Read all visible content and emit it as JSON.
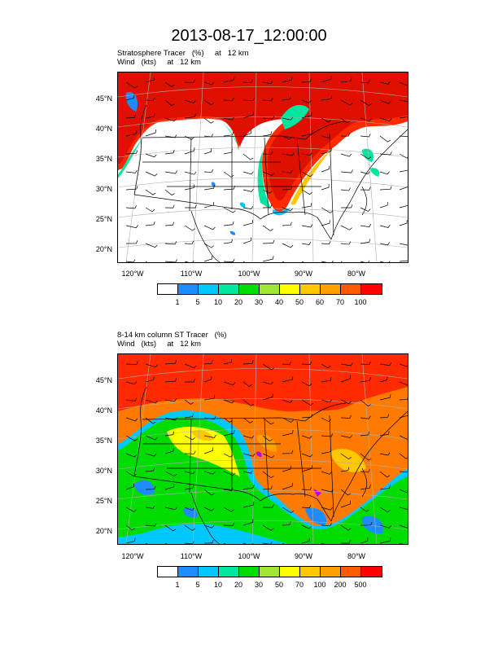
{
  "title": "2013-08-17_12:00:00",
  "panels": [
    {
      "line1": "Stratosphere Tracer   (%)     at   12 km",
      "line2": "Wind   (kts)     at   12 km",
      "lat_labels": [
        "45°N",
        "40°N",
        "35°N",
        "30°N",
        "25°N",
        "20°N"
      ],
      "lon_labels": [
        "120°W",
        "110°W",
        "100°W",
        "90°W",
        "80°W"
      ],
      "colorbar_labels": [
        "1",
        "5",
        "10",
        "20",
        "30",
        "40",
        "50",
        "60",
        "70",
        "100"
      ]
    },
    {
      "line1": "8-14 km column ST Tracer   (%)",
      "line2": "Wind   (kts)     at   12 km",
      "lat_labels": [
        "45°N",
        "40°N",
        "35°N",
        "30°N",
        "25°N",
        "20°N"
      ],
      "lon_labels": [
        "120°W",
        "110°W",
        "100°W",
        "90°W",
        "80°W"
      ],
      "colorbar_labels": [
        "1",
        "5",
        "10",
        "20",
        "30",
        "50",
        "70",
        "100",
        "200",
        "500"
      ]
    }
  ],
  "colors": [
    "#ffffff",
    "#1e8cff",
    "#00c8ff",
    "#00e6a0",
    "#00dc00",
    "#a0e632",
    "#ffff00",
    "#ffc800",
    "#ffa000",
    "#ff5a00",
    "#ff0000"
  ]
}
